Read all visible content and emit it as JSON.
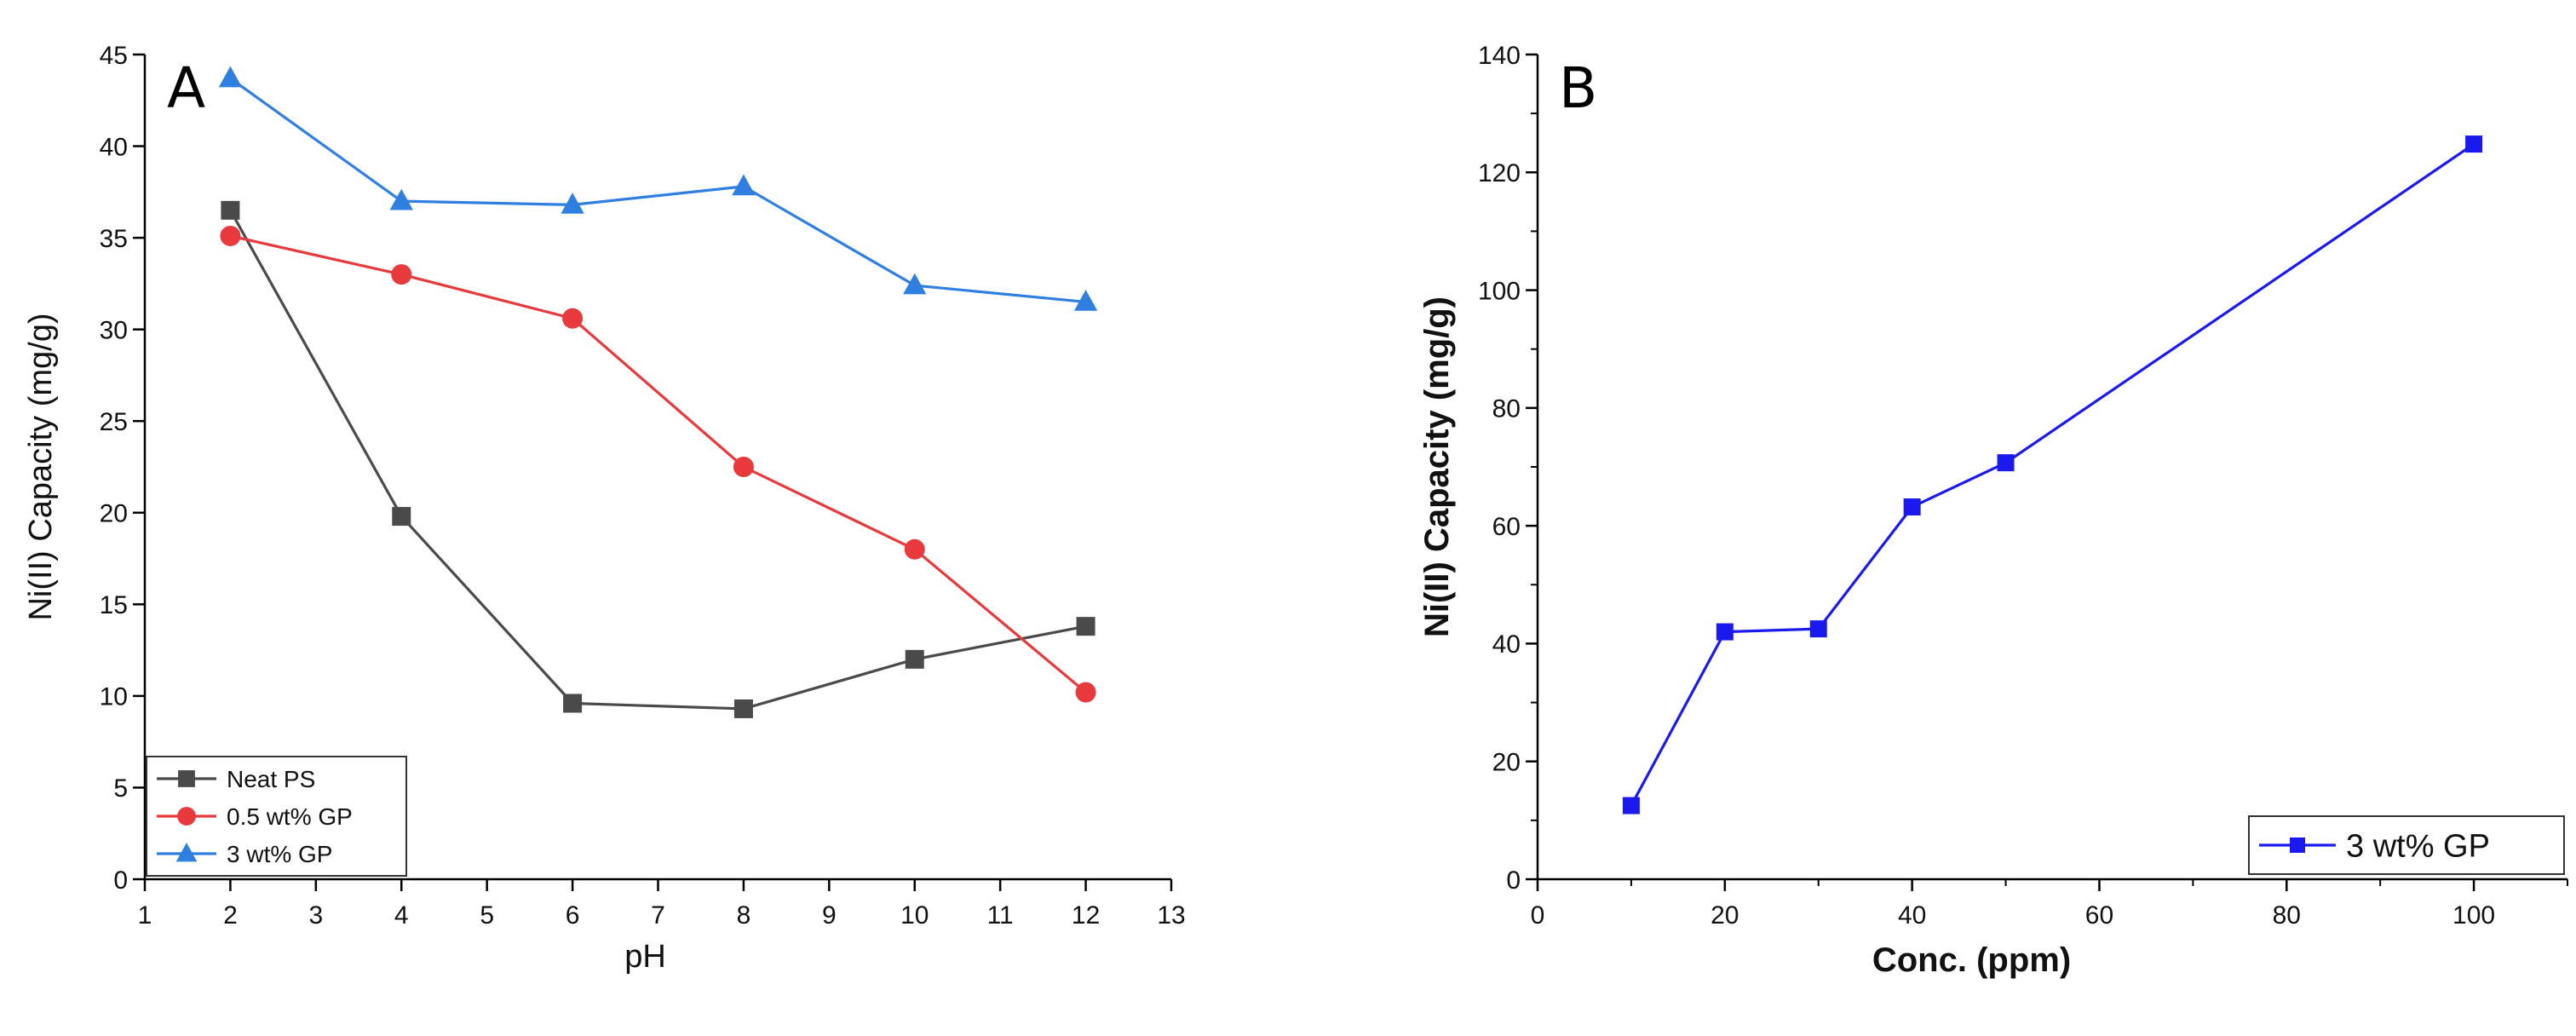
{
  "chart_data": [
    {
      "panel": "A",
      "type": "line",
      "xlabel": "pH",
      "ylabel": "Ni(II) Capacity (mg/g)",
      "xlim": [
        1,
        13
      ],
      "ylim": [
        0,
        45
      ],
      "xticks": [
        1,
        2,
        3,
        4,
        5,
        6,
        7,
        8,
        9,
        10,
        11,
        12,
        13
      ],
      "yticks": [
        0,
        5,
        10,
        15,
        20,
        25,
        30,
        35,
        40,
        45
      ],
      "legend_position": "bottom-left",
      "series": [
        {
          "name": "Neat PS",
          "color": "#4a4a4a",
          "marker": "square",
          "x": [
            2,
            4,
            6,
            8,
            10,
            12
          ],
          "values": [
            36.5,
            19.8,
            9.6,
            9.3,
            12.0,
            13.8
          ]
        },
        {
          "name": "0.5 wt% GP",
          "color": "#e8393c",
          "marker": "circle",
          "x": [
            2,
            4,
            6,
            8,
            10,
            12
          ],
          "values": [
            35.1,
            33.0,
            30.6,
            22.5,
            18.0,
            10.2
          ]
        },
        {
          "name": "3 wt% GP",
          "color": "#2f7fe0",
          "marker": "triangle",
          "x": [
            2,
            4,
            6,
            8,
            10,
            12
          ],
          "values": [
            43.7,
            37.0,
            36.8,
            37.8,
            32.4,
            31.5
          ]
        }
      ]
    },
    {
      "panel": "B",
      "type": "line",
      "xlabel": "Conc. (ppm)",
      "ylabel": "Ni(II) Capacity (mg/g)",
      "xlim": [
        0,
        110
      ],
      "ylim": [
        0,
        140
      ],
      "xticks": [
        0,
        20,
        40,
        60,
        80,
        100
      ],
      "yticks": [
        0,
        20,
        40,
        60,
        80,
        100,
        120,
        140
      ],
      "legend_position": "bottom-right",
      "series": [
        {
          "name": "3 wt% GP",
          "color": "#1a1aee",
          "marker": "square",
          "x": [
            10,
            20,
            30,
            40,
            50,
            100
          ],
          "values": [
            12.5,
            42.0,
            42.5,
            63.2,
            70.7,
            124.8
          ]
        }
      ]
    }
  ]
}
